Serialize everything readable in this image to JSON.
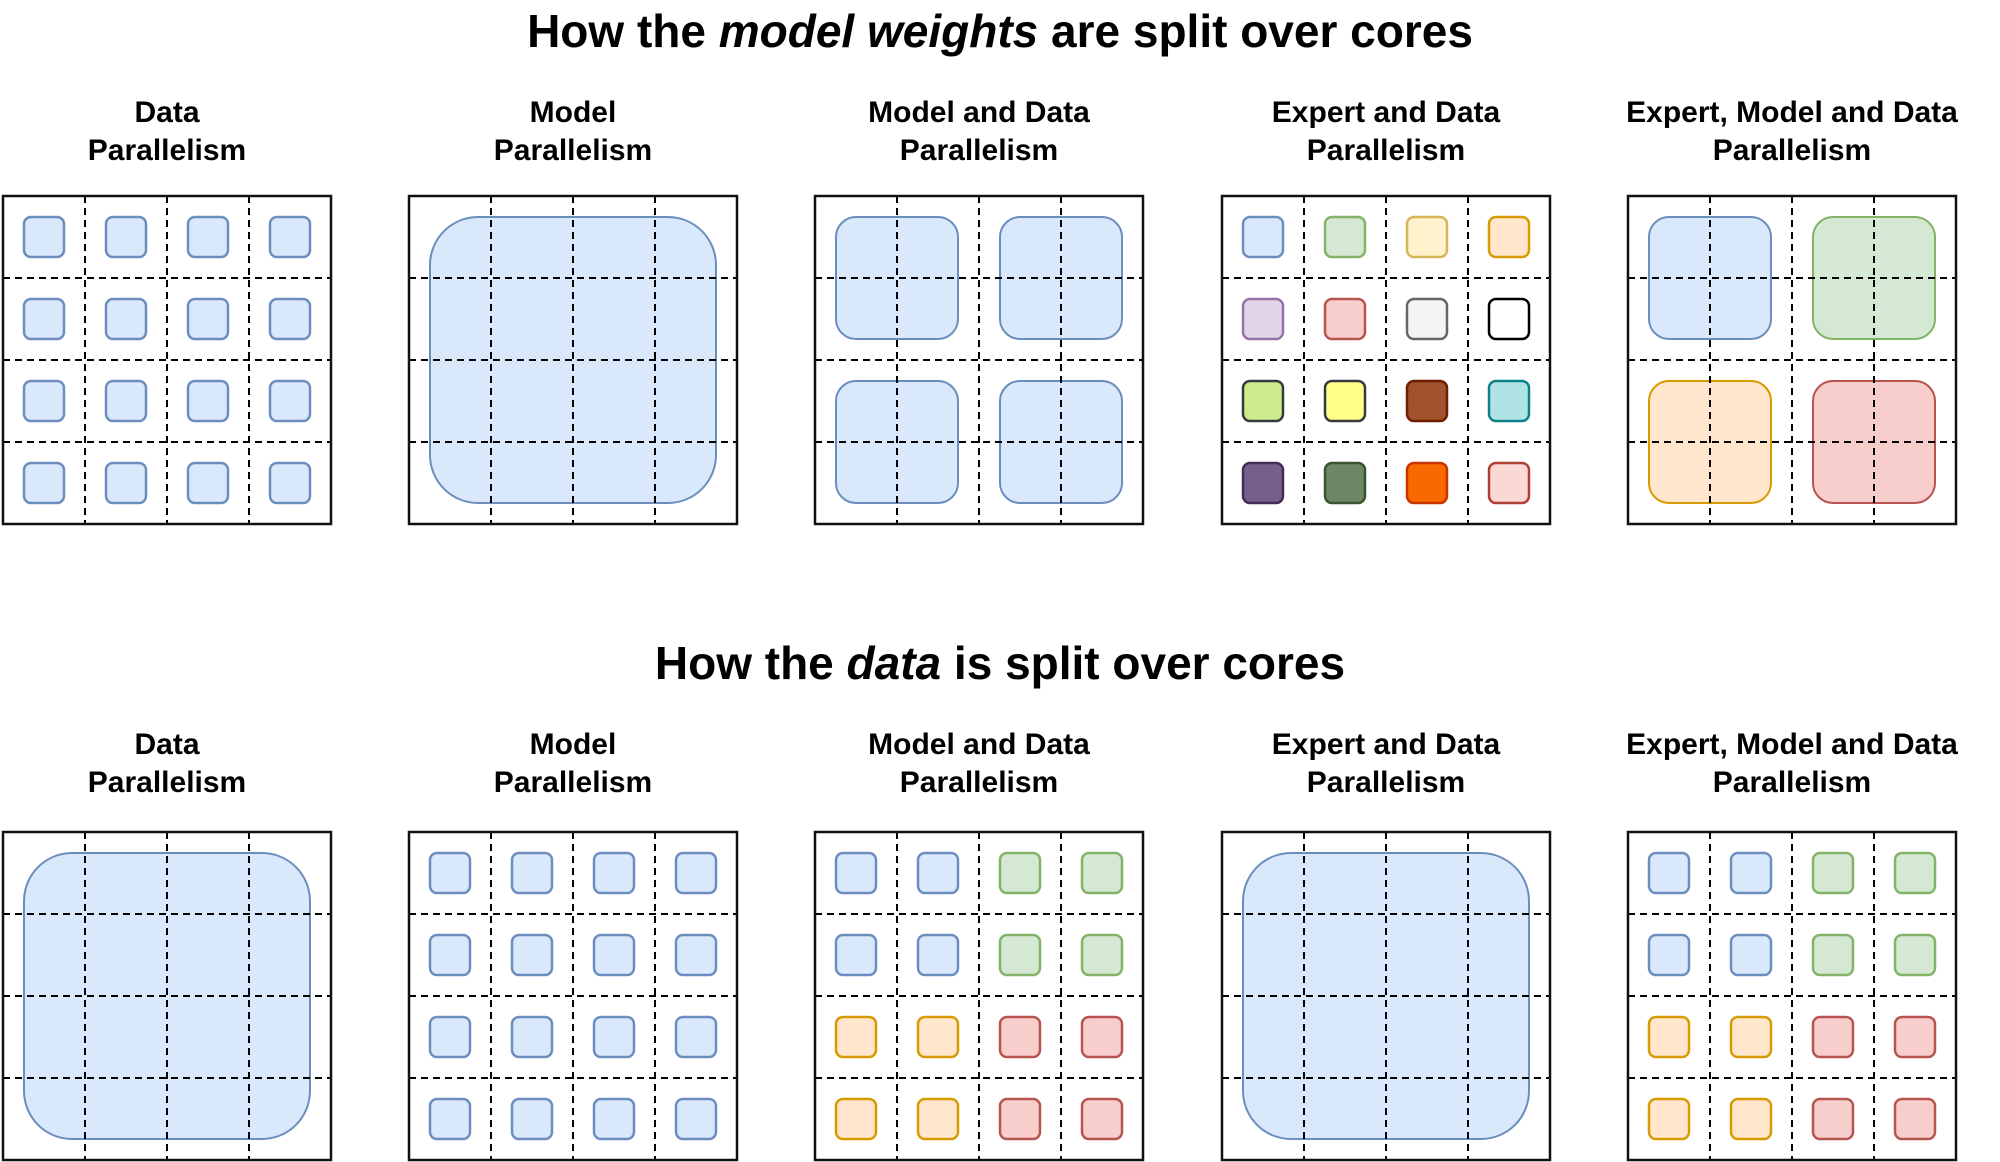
{
  "sections": [
    {
      "title": {
        "pre": "How the ",
        "em": "model weights",
        "post": " are split over cores"
      },
      "panels": [
        {
          "label": [
            "Data",
            "Parallelism"
          ],
          "type": "cells",
          "colors": [
            [
              "blue",
              "blue",
              "blue",
              "blue"
            ],
            [
              "blue",
              "blue",
              "blue",
              "blue"
            ],
            [
              "blue",
              "blue",
              "blue",
              "blue"
            ],
            [
              "blue",
              "blue",
              "blue",
              "blue"
            ]
          ]
        },
        {
          "label": [
            "Model",
            "Parallelism"
          ],
          "type": "blocks",
          "blocks": [
            {
              "cols": [
                0,
                3
              ],
              "rows": [
                0,
                3
              ],
              "color": "blue"
            }
          ]
        },
        {
          "label": [
            "Model and Data",
            "Parallelism"
          ],
          "type": "blocks",
          "blocks": [
            {
              "cols": [
                0,
                1
              ],
              "rows": [
                0,
                1
              ],
              "color": "blue"
            },
            {
              "cols": [
                2,
                3
              ],
              "rows": [
                0,
                1
              ],
              "color": "blue"
            },
            {
              "cols": [
                0,
                1
              ],
              "rows": [
                2,
                3
              ],
              "color": "blue"
            },
            {
              "cols": [
                2,
                3
              ],
              "rows": [
                2,
                3
              ],
              "color": "blue"
            }
          ]
        },
        {
          "label": [
            "Expert and Data",
            "Parallelism"
          ],
          "type": "cells",
          "colors": [
            [
              "blue",
              "green",
              "yellow",
              "orange"
            ],
            [
              "purple",
              "red",
              "gray",
              "white"
            ],
            [
              "lime",
              "brightyellow",
              "brown",
              "cyan"
            ],
            [
              "darkpurple",
              "darkgreen",
              "brightorange",
              "pink"
            ]
          ]
        },
        {
          "label": [
            "Expert, Model and Data",
            "Parallelism"
          ],
          "type": "blocks",
          "blocks": [
            {
              "cols": [
                0,
                1
              ],
              "rows": [
                0,
                1
              ],
              "color": "blue"
            },
            {
              "cols": [
                2,
                3
              ],
              "rows": [
                0,
                1
              ],
              "color": "green"
            },
            {
              "cols": [
                0,
                1
              ],
              "rows": [
                2,
                3
              ],
              "color": "orange"
            },
            {
              "cols": [
                2,
                3
              ],
              "rows": [
                2,
                3
              ],
              "color": "red"
            }
          ]
        }
      ]
    },
    {
      "title": {
        "pre": "How the ",
        "em": "data",
        "post": " is split over cores"
      },
      "panels": [
        {
          "label": [
            "Data",
            "Parallelism"
          ],
          "type": "blocks",
          "blocks": [
            {
              "cols": [
                0,
                3
              ],
              "rows": [
                0,
                3
              ],
              "color": "blue"
            }
          ]
        },
        {
          "label": [
            "Model",
            "Parallelism"
          ],
          "type": "cells",
          "colors": [
            [
              "blue",
              "blue",
              "blue",
              "blue"
            ],
            [
              "blue",
              "blue",
              "blue",
              "blue"
            ],
            [
              "blue",
              "blue",
              "blue",
              "blue"
            ],
            [
              "blue",
              "blue",
              "blue",
              "blue"
            ]
          ]
        },
        {
          "label": [
            "Model and Data",
            "Parallelism"
          ],
          "type": "cells",
          "colors": [
            [
              "blue",
              "blue",
              "green",
              "green"
            ],
            [
              "blue",
              "blue",
              "green",
              "green"
            ],
            [
              "orange",
              "orange",
              "red",
              "red"
            ],
            [
              "orange",
              "orange",
              "red",
              "red"
            ]
          ]
        },
        {
          "label": [
            "Expert and Data",
            "Parallelism"
          ],
          "type": "blocks",
          "blocks": [
            {
              "cols": [
                0,
                3
              ],
              "rows": [
                0,
                3
              ],
              "color": "blue"
            }
          ]
        },
        {
          "label": [
            "Expert, Model and Data",
            "Parallelism"
          ],
          "type": "cells",
          "colors": [
            [
              "blue",
              "blue",
              "green",
              "green"
            ],
            [
              "blue",
              "blue",
              "green",
              "green"
            ],
            [
              "orange",
              "orange",
              "red",
              "red"
            ],
            [
              "orange",
              "orange",
              "red",
              "red"
            ]
          ]
        }
      ]
    }
  ],
  "palette": {
    "blue": [
      "#dae8fc",
      "#6c8ebf"
    ],
    "green": [
      "#d5e8d4",
      "#82b366"
    ],
    "yellow": [
      "#fff2cc",
      "#d6b656"
    ],
    "orange": [
      "#ffe6cc",
      "#d79b00"
    ],
    "purple": [
      "#e1d5e7",
      "#9673a6"
    ],
    "red": [
      "#f8cecc",
      "#b85450"
    ],
    "gray": [
      "#f5f5f5",
      "#666666"
    ],
    "white": [
      "#ffffff",
      "#000000"
    ],
    "lime": [
      "#cdeb8b",
      "#36393d"
    ],
    "brightyellow": [
      "#ffff88",
      "#36393d"
    ],
    "brown": [
      "#a0522d",
      "#6d1f00"
    ],
    "cyan": [
      "#b0e3e6",
      "#0e8088"
    ],
    "darkpurple": [
      "#76608a",
      "#432d57"
    ],
    "darkgreen": [
      "#6d8764",
      "#3a5431"
    ],
    "brightorange": [
      "#fa6800",
      "#c73500"
    ],
    "pink": [
      "#fad9d5",
      "#ae4132"
    ]
  }
}
